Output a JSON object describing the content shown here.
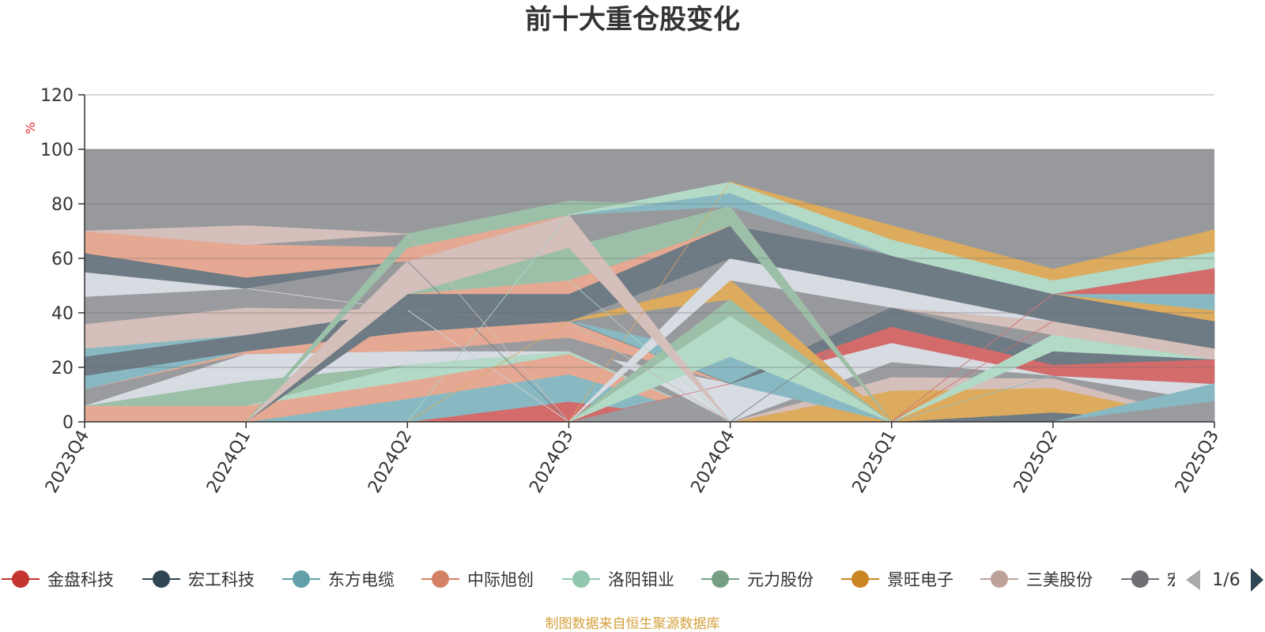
{
  "chart_data": {
    "type": "area",
    "title": "前十大重仓股变化",
    "ylabel": "%",
    "ylim": [
      0,
      120
    ],
    "yticks": [
      0,
      20,
      40,
      60,
      80,
      100,
      120
    ],
    "categories": [
      "2023Q4",
      "2024Q1",
      "2024Q2",
      "2024Q3",
      "2024Q4",
      "2025Q1",
      "2025Q2",
      "2025Q3"
    ],
    "grid": true,
    "total_band": 100,
    "background_color": "#98999d",
    "layers": [
      {
        "color": "#d46b6b",
        "lower": [
          0,
          0,
          0,
          0,
          0,
          0,
          0,
          0
        ],
        "upper": [
          0,
          0,
          0,
          7.5,
          0,
          0,
          0,
          0
        ]
      },
      {
        "color": "#6e7a84",
        "lower": [
          0,
          0,
          0,
          0,
          0,
          0,
          0,
          0
        ],
        "upper": [
          0,
          0,
          0,
          0,
          0,
          0,
          3.5,
          0
        ]
      },
      {
        "color": "#88b9c2",
        "lower": [
          0,
          0,
          0,
          7.5,
          0,
          0,
          0,
          0
        ],
        "upper": [
          0,
          0,
          8.5,
          17.5,
          0,
          0,
          0,
          0
        ]
      },
      {
        "color": "#dcab5e",
        "lower": [
          0,
          0,
          0,
          0,
          0,
          0,
          3.5,
          0
        ],
        "upper": [
          0,
          0,
          0,
          0,
          0,
          11.5,
          12.5,
          0
        ]
      },
      {
        "color": "#e5a892",
        "lower": [
          0,
          0,
          8.5,
          17.5,
          0,
          0,
          0,
          0
        ],
        "upper": [
          6,
          6,
          15,
          25,
          0,
          0,
          0,
          0
        ]
      },
      {
        "color": "#d4bfba",
        "lower": [
          0,
          0,
          0,
          0,
          0,
          11.5,
          12.5,
          0
        ],
        "upper": [
          0,
          0,
          0,
          0,
          0,
          16.5,
          16,
          0
        ]
      },
      {
        "color": "#b3d9c7",
        "lower": [
          6,
          6,
          15,
          25,
          0,
          0,
          0,
          0
        ],
        "upper": [
          6,
          6,
          21,
          26,
          0,
          0,
          0,
          0
        ]
      },
      {
        "color": "#9a9b9f",
        "lower": [
          0,
          0,
          0,
          0,
          0,
          16.5,
          16,
          0
        ],
        "upper": [
          0,
          0,
          0,
          0,
          14,
          22,
          17,
          7.5
        ]
      },
      {
        "color": "#9cbfa8",
        "lower": [
          6,
          6,
          21,
          26,
          0,
          0,
          0,
          0
        ],
        "upper": [
          6,
          15,
          21,
          26,
          0,
          0,
          0,
          0
        ]
      },
      {
        "color": "#d7dbe2",
        "lower": [
          6,
          15,
          21,
          26,
          0,
          22,
          17,
          7.5
        ],
        "upper": [
          6,
          25,
          26,
          26,
          14,
          29,
          17,
          14
        ]
      },
      {
        "color": "#9a9b9f",
        "lower": [
          6,
          25,
          26,
          26,
          0,
          0,
          0,
          0
        ],
        "upper": [
          12,
          25,
          26,
          31,
          0,
          0,
          0,
          0
        ]
      },
      {
        "color": "#88b9c2",
        "lower": [
          0,
          0,
          0,
          0,
          0,
          0,
          17,
          14
        ],
        "upper": [
          0,
          0,
          0,
          0,
          0,
          0,
          17,
          14
        ]
      },
      {
        "color": "#d46b6b",
        "lower": [
          0,
          0,
          0,
          0,
          14,
          29,
          17,
          14
        ],
        "upper": [
          0,
          0,
          0,
          0,
          14,
          35,
          21,
          23
        ]
      },
      {
        "color": "#88b9c2",
        "lower": [
          0,
          0,
          0,
          0,
          0,
          0,
          0,
          7.5
        ],
        "upper": [
          0,
          0,
          0,
          0,
          0,
          0,
          0,
          14
        ]
      },
      {
        "color": "#9a9b9f",
        "lower": [
          0,
          0,
          0,
          0,
          0,
          0,
          0,
          0
        ],
        "upper": [
          0,
          0,
          0,
          0,
          0,
          0,
          0,
          7.5
        ]
      },
      {
        "color": "#e5a892",
        "lower": [
          12,
          25,
          26,
          31,
          14,
          0,
          0,
          0
        ],
        "upper": [
          12,
          26,
          33,
          37,
          14,
          0,
          0,
          0
        ]
      },
      {
        "color": "#88b9c2",
        "lower": [
          12,
          26,
          33,
          37,
          14,
          0,
          0,
          0
        ],
        "upper": [
          17,
          26,
          33,
          37,
          24,
          0,
          0,
          0
        ]
      },
      {
        "color": "#6e7a84",
        "lower": [
          17,
          26,
          33,
          37,
          14,
          35,
          21,
          23
        ],
        "upper": [
          24,
          32,
          41,
          37,
          14,
          42,
          26,
          23
        ]
      },
      {
        "color": "#b3d9c7",
        "lower": [
          0,
          0,
          0,
          0,
          24,
          0,
          26,
          23
        ],
        "upper": [
          0,
          0,
          0,
          0,
          39,
          0,
          32,
          23
        ]
      },
      {
        "color": "#9cbfa8",
        "lower": [
          0,
          0,
          0,
          0,
          39,
          0,
          0,
          0
        ],
        "upper": [
          0,
          0,
          0,
          0,
          45,
          0,
          0,
          0
        ]
      },
      {
        "color": "#88b9c2",
        "lower": [
          24,
          32,
          41,
          37,
          0,
          0,
          0,
          0
        ],
        "upper": [
          27,
          32,
          41,
          37,
          0,
          0,
          0,
          0
        ]
      },
      {
        "color": "#9cbfa8",
        "lower": [
          27,
          32,
          41,
          37,
          0,
          0,
          0,
          0
        ],
        "upper": [
          27,
          32,
          41,
          37,
          0,
          0,
          0,
          0
        ]
      },
      {
        "color": "#d4bfba",
        "lower": [
          0,
          0,
          0,
          0,
          0,
          42,
          32,
          23
        ],
        "upper": [
          0,
          0,
          0,
          0,
          0,
          42,
          37,
          27
        ]
      },
      {
        "color": "#6e7a84",
        "lower": [
          0,
          0,
          0,
          0,
          0,
          42,
          37,
          27
        ],
        "upper": [
          0,
          0,
          0,
          0,
          0,
          42,
          37,
          27
        ]
      },
      {
        "color": "#d46b6b",
        "lower": [
          0,
          0,
          0,
          0,
          0,
          0,
          37,
          27
        ],
        "upper": [
          0,
          0,
          0,
          0,
          0,
          0,
          37,
          27
        ]
      },
      {
        "color": "#d4bfba",
        "lower": [
          27,
          32,
          41,
          37,
          0,
          0,
          0,
          0
        ],
        "upper": [
          36,
          42,
          41,
          37,
          0,
          0,
          0,
          0
        ]
      },
      {
        "color": "#9cbfa8",
        "lower": [
          0,
          0,
          0,
          37,
          45,
          0,
          0,
          0
        ],
        "upper": [
          0,
          0,
          0,
          37,
          45,
          0,
          0,
          0
        ]
      },
      {
        "color": "#dcab5e",
        "lower": [
          0,
          0,
          0,
          37,
          45,
          0,
          0,
          0
        ],
        "upper": [
          0,
          0,
          0,
          37,
          52,
          0,
          0,
          0
        ]
      },
      {
        "color": "#9a9b9f",
        "lower": [
          36,
          42,
          41,
          0,
          0,
          0,
          0,
          0
        ],
        "upper": [
          46,
          49,
          41,
          0,
          0,
          0,
          0,
          0
        ]
      },
      {
        "color": "#d7dbe2",
        "lower": [
          46,
          49,
          41,
          0,
          52,
          42,
          37,
          27
        ],
        "upper": [
          55,
          49,
          41,
          0,
          60,
          49,
          37,
          27
        ]
      },
      {
        "color": "#6e7a84",
        "lower": [
          0,
          0,
          41,
          37,
          60,
          49,
          37,
          27
        ],
        "upper": [
          0,
          0,
          47,
          47,
          72,
          61,
          47,
          37
        ]
      },
      {
        "color": "#e5a892",
        "lower": [
          0,
          0,
          47,
          47,
          72,
          0,
          0,
          0
        ],
        "upper": [
          0,
          0,
          47,
          52,
          72,
          0,
          0,
          0
        ]
      },
      {
        "color": "#dcab5e",
        "lower": [
          0,
          0,
          0,
          0,
          0,
          0,
          47,
          37
        ],
        "upper": [
          0,
          0,
          0,
          0,
          0,
          0,
          47,
          41
        ]
      },
      {
        "color": "#b3d9c7",
        "lower": [
          0,
          0,
          47,
          52,
          0,
          0,
          0,
          0
        ],
        "upper": [
          0,
          0,
          47,
          52,
          0,
          0,
          0,
          0
        ]
      },
      {
        "color": "#9cbfa8",
        "lower": [
          0,
          0,
          47,
          52,
          72,
          0,
          0,
          0
        ],
        "upper": [
          0,
          0,
          47,
          64,
          79,
          0,
          0,
          0
        ]
      },
      {
        "color": "#d4bfba",
        "lower": [
          0,
          0,
          47,
          64,
          0,
          0,
          0,
          0
        ],
        "upper": [
          0,
          0,
          59,
          76,
          0,
          0,
          0,
          0
        ]
      },
      {
        "color": "#88b9c2",
        "lower": [
          0,
          0,
          0,
          0,
          0,
          0,
          47,
          41
        ],
        "upper": [
          0,
          0,
          0,
          0,
          0,
          0,
          47,
          47
        ]
      },
      {
        "color": "#d46b6b",
        "lower": [
          0,
          0,
          0,
          0,
          0,
          0,
          47,
          47
        ],
        "upper": [
          0,
          0,
          0,
          0,
          0,
          0,
          47,
          56.5
        ]
      },
      {
        "color": "#6e7a84",
        "lower": [
          55,
          49,
          59,
          0,
          0,
          0,
          0,
          0
        ],
        "upper": [
          62,
          53,
          59,
          0,
          0,
          0,
          0,
          0
        ]
      },
      {
        "color": "#e5a892",
        "lower": [
          62,
          53,
          59,
          76,
          79,
          0,
          0,
          0
        ],
        "upper": [
          70,
          65,
          64,
          76,
          79,
          0,
          0,
          0
        ]
      },
      {
        "color": "#9cbfa8",
        "lower": [
          0,
          0,
          64,
          76,
          79,
          0,
          0,
          0
        ],
        "upper": [
          0,
          0,
          69,
          81,
          79,
          0,
          0,
          0
        ]
      },
      {
        "color": "#88b9c2",
        "lower": [
          0,
          0,
          0,
          76,
          79,
          61,
          47,
          56.5
        ],
        "upper": [
          0,
          0,
          0,
          76,
          84,
          61,
          47,
          56.5
        ]
      },
      {
        "color": "#b3d9c7",
        "lower": [
          0,
          0,
          0,
          76,
          84,
          61,
          47,
          56.5
        ],
        "upper": [
          0,
          0,
          0,
          76,
          88,
          67,
          52,
          62.5
        ]
      },
      {
        "color": "#dcab5e",
        "lower": [
          0,
          0,
          0,
          0,
          88,
          67,
          52,
          62.5
        ],
        "upper": [
          0,
          0,
          0,
          0,
          88,
          72,
          56,
          70.5
        ]
      },
      {
        "color": "#d4bfba",
        "lower": [
          70,
          65,
          69,
          0,
          0,
          0,
          0,
          0
        ],
        "upper": [
          70,
          72,
          69,
          0,
          0,
          0,
          0,
          0
        ]
      }
    ],
    "series_names": [
      "金盘科技",
      "宏工科技",
      "东方电缆",
      "中际旭创",
      "洛阳钼业",
      "元力股份",
      "景旺电子",
      "三美股份",
      "宏发股份"
    ]
  },
  "legend": {
    "items": [
      {
        "name": "金盘科技",
        "color": "#c23531"
      },
      {
        "name": "宏工科技",
        "color": "#2f4554"
      },
      {
        "name": "东方电缆",
        "color": "#61a0a8"
      },
      {
        "name": "中际旭创",
        "color": "#d48265"
      },
      {
        "name": "洛阳钼业",
        "color": "#91c7ae"
      },
      {
        "name": "元力股份",
        "color": "#749f83"
      },
      {
        "name": "景旺电子",
        "color": "#ca8622"
      },
      {
        "name": "三美股份",
        "color": "#bda29a"
      },
      {
        "name": "宏",
        "color": "#6e7074"
      }
    ],
    "page_indicator": "1/6",
    "prev_icon": "triangle-left-icon",
    "next_icon": "triangle-right-icon"
  },
  "footer": {
    "source": "制图数据来自恒生聚源数据库"
  }
}
